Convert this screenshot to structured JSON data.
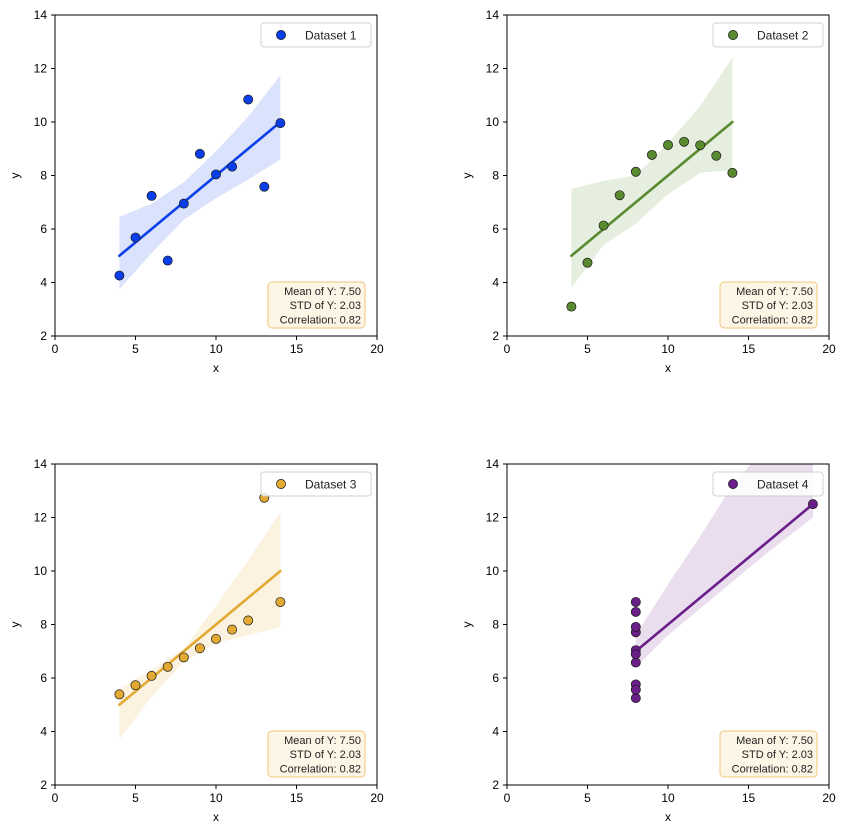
{
  "chart_data": [
    {
      "type": "scatter",
      "legend": "Dataset 1",
      "legend_position": "upper-right",
      "color": "#0a3ee8",
      "xlabel": "x",
      "ylabel": "y",
      "xlim": [
        0,
        20
      ],
      "ylim": [
        2,
        14
      ],
      "x_ticks": [
        "0",
        "5",
        "10",
        "15",
        "20"
      ],
      "y_ticks": [
        "2",
        "4",
        "6",
        "8",
        "10",
        "12",
        "14"
      ],
      "x": [
        10,
        8,
        13,
        9,
        11,
        14,
        6,
        4,
        12,
        7,
        5
      ],
      "y": [
        8.04,
        6.95,
        7.58,
        8.81,
        8.33,
        9.96,
        7.24,
        4.26,
        10.84,
        4.82,
        5.68
      ],
      "fit_line": {
        "x": [
          4,
          14
        ],
        "y": [
          5.0,
          10.0
        ]
      },
      "confidence_band": {
        "x": [
          4,
          6,
          8,
          10,
          12,
          14
        ],
        "upper": [
          6.45,
          6.95,
          7.75,
          8.9,
          10.2,
          11.75
        ],
        "lower": [
          3.75,
          5.1,
          6.35,
          7.15,
          7.85,
          8.6
        ]
      },
      "stats_box": [
        "Mean of Y: 7.50",
        "STD of Y: 2.03",
        "Correlation: 0.82"
      ]
    },
    {
      "type": "scatter",
      "legend": "Dataset 2",
      "legend_position": "upper-right",
      "color": "#5a8a30",
      "xlabel": "x",
      "ylabel": "y",
      "xlim": [
        0,
        20
      ],
      "ylim": [
        2,
        14
      ],
      "x_ticks": [
        "0",
        "5",
        "10",
        "15",
        "20"
      ],
      "y_ticks": [
        "2",
        "4",
        "6",
        "8",
        "10",
        "12",
        "14"
      ],
      "x": [
        10,
        8,
        13,
        9,
        11,
        14,
        6,
        4,
        12,
        7,
        5
      ],
      "y": [
        9.14,
        8.14,
        8.74,
        8.77,
        9.26,
        8.1,
        6.13,
        3.1,
        9.13,
        7.26,
        4.74
      ],
      "fit_line": {
        "x": [
          4,
          14
        ],
        "y": [
          5.0,
          10.0
        ]
      },
      "confidence_band": {
        "x": [
          4,
          6,
          8,
          10,
          12,
          14
        ],
        "upper": [
          7.5,
          7.8,
          8.0,
          9.2,
          10.6,
          12.4
        ],
        "lower": [
          3.8,
          5.4,
          6.2,
          7.3,
          8.1,
          8.2
        ]
      },
      "stats_box": [
        "Mean of Y: 7.50",
        "STD of Y: 2.03",
        "Correlation: 0.82"
      ]
    },
    {
      "type": "scatter",
      "legend": "Dataset 3",
      "legend_position": "upper-right",
      "color": "#e2aa32",
      "xlabel": "x",
      "ylabel": "y",
      "xlim": [
        0,
        20
      ],
      "ylim": [
        2,
        14
      ],
      "x_ticks": [
        "0",
        "5",
        "10",
        "15",
        "20"
      ],
      "y_ticks": [
        "2",
        "4",
        "6",
        "8",
        "10",
        "12",
        "14"
      ],
      "x": [
        10,
        8,
        13,
        9,
        11,
        14,
        6,
        4,
        12,
        7,
        5
      ],
      "y": [
        7.46,
        6.77,
        12.74,
        7.11,
        7.81,
        8.84,
        6.08,
        5.39,
        8.15,
        6.42,
        5.73
      ],
      "fit_line": {
        "x": [
          4,
          14
        ],
        "y": [
          5.0,
          10.0
        ]
      },
      "confidence_band": {
        "x": [
          4,
          6,
          8,
          10,
          12,
          14
        ],
        "upper": [
          5.6,
          6.3,
          7.1,
          8.7,
          10.4,
          12.2
        ],
        "lower": [
          3.7,
          5.3,
          6.6,
          7.3,
          7.6,
          7.9
        ]
      },
      "stats_box": [
        "Mean of Y: 7.50",
        "STD of Y: 2.03",
        "Correlation: 0.82"
      ]
    },
    {
      "type": "scatter",
      "legend": "Dataset 4",
      "legend_position": "upper-right",
      "color": "#6a1e8a",
      "xlabel": "x",
      "ylabel": "y",
      "xlim": [
        0,
        20
      ],
      "ylim": [
        2,
        14
      ],
      "x_ticks": [
        "0",
        "5",
        "10",
        "15",
        "20"
      ],
      "y_ticks": [
        "2",
        "4",
        "6",
        "8",
        "10",
        "12",
        "14"
      ],
      "x": [
        8,
        8,
        8,
        8,
        8,
        8,
        8,
        19,
        8,
        8,
        8
      ],
      "y": [
        6.58,
        5.76,
        7.71,
        8.84,
        8.47,
        7.04,
        5.25,
        12.5,
        5.56,
        7.91,
        6.89
      ],
      "fit_line": {
        "x": [
          8,
          19
        ],
        "y": [
          7.0,
          12.5
        ]
      },
      "confidence_band": {
        "x": [
          8,
          10,
          12,
          14,
          16,
          19
        ],
        "upper": [
          7.6,
          9.5,
          11.3,
          13.2,
          14.6,
          14.6
        ],
        "lower": [
          6.4,
          7.6,
          8.6,
          9.6,
          10.6,
          12.0
        ]
      },
      "stats_box": [
        "Mean of Y: 7.50",
        "STD of Y: 2.03",
        "Correlation: 0.82"
      ]
    }
  ]
}
